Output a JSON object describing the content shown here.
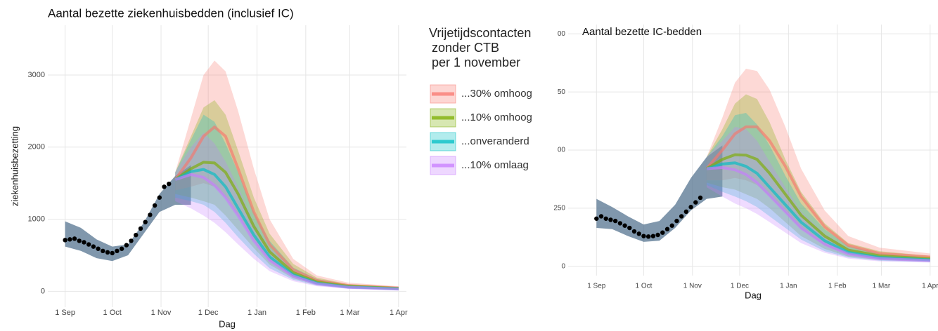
{
  "chart_data": [
    {
      "type": "line",
      "title": "Aantal bezette ziekenhuisbedden (inclusief IC)",
      "x_label": "Dag",
      "y_label": "ziekenhuisbezetting",
      "legend_title": [
        "Vrijetijdscontacten",
        "zonder CTB",
        "per 1 november"
      ],
      "xlim": [
        -11,
        217
      ],
      "ylim": [
        -220,
        3690
      ],
      "xticks": [
        {
          "value": 0,
          "label": "1 Sep"
        },
        {
          "value": 30,
          "label": "1 Oct"
        },
        {
          "value": 61,
          "label": "1 Nov"
        },
        {
          "value": 91,
          "label": "1 Dec"
        },
        {
          "value": 122,
          "label": "1 Jan"
        },
        {
          "value": 153,
          "label": "1 Feb"
        },
        {
          "value": 181,
          "label": "1 Mar"
        },
        {
          "value": 212,
          "label": "1 Apr"
        }
      ],
      "yticks": [
        0,
        1000,
        2000,
        3000
      ],
      "grid": true,
      "x": [
        70,
        80,
        88,
        95,
        102,
        110,
        120,
        130,
        145,
        160,
        180,
        212
      ],
      "series": [
        {
          "name": "...30% omhoog",
          "color": "#f8766d",
          "values": [
            1550,
            1850,
            2150,
            2280,
            2150,
            1700,
            1100,
            650,
            300,
            150,
            80,
            45
          ],
          "upper": [
            1650,
            2400,
            3000,
            3200,
            3050,
            2500,
            1700,
            1000,
            450,
            220,
            120,
            70
          ],
          "lower": [
            1400,
            1450,
            1500,
            1450,
            1300,
            1050,
            700,
            420,
            200,
            100,
            50,
            25
          ]
        },
        {
          "name": "...10% omhoog",
          "color": "#7cae00",
          "values": [
            1550,
            1700,
            1790,
            1780,
            1650,
            1350,
            900,
            550,
            260,
            130,
            70,
            40
          ],
          "upper": [
            1650,
            2150,
            2550,
            2650,
            2450,
            1950,
            1300,
            800,
            380,
            190,
            100,
            60
          ],
          "lower": [
            1350,
            1300,
            1250,
            1200,
            1050,
            850,
            600,
            370,
            180,
            90,
            45,
            22
          ]
        },
        {
          "name": "...onveranderd",
          "color": "#00bfc4",
          "values": [
            1550,
            1660,
            1690,
            1620,
            1450,
            1150,
            780,
            480,
            230,
            115,
            60,
            35
          ],
          "upper": [
            1650,
            2100,
            2450,
            2350,
            2050,
            1650,
            1100,
            700,
            330,
            170,
            90,
            55
          ],
          "lower": [
            1300,
            1250,
            1200,
            1100,
            950,
            750,
            520,
            320,
            160,
            80,
            40,
            20
          ]
        },
        {
          "name": "...10% omlaag",
          "color": "#c77cff",
          "values": [
            1550,
            1620,
            1580,
            1470,
            1300,
            1050,
            700,
            430,
            210,
            105,
            55,
            30
          ],
          "upper": [
            1650,
            2000,
            2200,
            2050,
            1800,
            1450,
            950,
            600,
            300,
            150,
            80,
            50
          ],
          "lower": [
            1250,
            1150,
            1050,
            950,
            820,
            650,
            450,
            280,
            140,
            70,
            35,
            18
          ]
        }
      ],
      "base": {
        "color": "#4f6f8c",
        "x": [
          0,
          10,
          20,
          30,
          40,
          50,
          60,
          70,
          80
        ],
        "lower": [
          620,
          560,
          460,
          420,
          500,
          800,
          1100,
          1200,
          1200
        ],
        "upper": [
          970,
          880,
          720,
          620,
          650,
          950,
          1350,
          1600,
          1750
        ]
      },
      "observed": {
        "color": "#000000",
        "x": [
          0,
          3,
          6,
          9,
          12,
          15,
          18,
          21,
          24,
          27,
          30,
          33,
          36,
          39,
          42,
          45,
          48,
          51,
          54,
          57,
          60,
          63,
          66
        ],
        "values": [
          710,
          720,
          730,
          700,
          680,
          650,
          620,
          590,
          560,
          540,
          530,
          560,
          590,
          640,
          700,
          780,
          870,
          960,
          1060,
          1190,
          1300,
          1450,
          1490
        ]
      }
    },
    {
      "type": "line",
      "title": "Aantal bezette IC-bedden",
      "x_label": "Dag",
      "xlim": [
        -18,
        217
      ],
      "ylim": [
        -40,
        1040
      ],
      "xticks": [
        {
          "value": 0,
          "label": "1 Sep"
        },
        {
          "value": 30,
          "label": "1 Oct"
        },
        {
          "value": 61,
          "label": "1 Nov"
        },
        {
          "value": 91,
          "label": "1 Dec"
        },
        {
          "value": 122,
          "label": "1 Jan"
        },
        {
          "value": 153,
          "label": "1 Feb"
        },
        {
          "value": 181,
          "label": "1 Mar"
        },
        {
          "value": 212,
          "label": "1 Apr"
        }
      ],
      "yticks": [
        0,
        250,
        {
          "value": 500,
          "label": "00"
        },
        {
          "value": 750,
          "label": "50"
        },
        {
          "value": 1000,
          "label": "00"
        }
      ],
      "grid": true,
      "x": [
        70,
        80,
        88,
        95,
        102,
        110,
        120,
        130,
        145,
        160,
        180,
        212
      ],
      "series": [
        {
          "color": "#f8766d",
          "values": [
            420,
            500,
            570,
            600,
            600,
            540,
            430,
            300,
            170,
            90,
            55,
            40
          ],
          "upper": [
            470,
            640,
            790,
            850,
            840,
            760,
            600,
            420,
            240,
            130,
            80,
            55
          ],
          "lower": [
            370,
            370,
            380,
            370,
            350,
            300,
            230,
            160,
            90,
            50,
            30,
            22
          ]
        },
        {
          "color": "#7cae00",
          "values": [
            420,
            460,
            480,
            478,
            460,
            400,
            310,
            220,
            130,
            70,
            45,
            32
          ],
          "upper": [
            470,
            590,
            700,
            740,
            720,
            620,
            460,
            320,
            185,
            100,
            65,
            45
          ],
          "lower": [
            360,
            340,
            330,
            310,
            290,
            250,
            190,
            130,
            75,
            42,
            27,
            20
          ]
        },
        {
          "color": "#00bfc4",
          "values": [
            420,
            440,
            445,
            430,
            400,
            340,
            265,
            190,
            110,
            60,
            38,
            28
          ],
          "upper": [
            470,
            560,
            650,
            660,
            610,
            520,
            390,
            270,
            160,
            88,
            55,
            40
          ],
          "lower": [
            350,
            320,
            300,
            280,
            255,
            215,
            165,
            115,
            65,
            38,
            24,
            18
          ]
        },
        {
          "color": "#c77cff",
          "values": [
            420,
            425,
            415,
            395,
            360,
            305,
            235,
            165,
            95,
            53,
            33,
            25
          ],
          "upper": [
            470,
            540,
            600,
            590,
            540,
            450,
            340,
            235,
            140,
            78,
            48,
            35
          ],
          "lower": [
            340,
            300,
            270,
            250,
            225,
            190,
            145,
            100,
            58,
            33,
            21,
            16
          ]
        }
      ],
      "base": {
        "color": "#4f6f8c",
        "x": [
          0,
          10,
          20,
          30,
          40,
          50,
          60,
          70,
          80
        ],
        "lower": [
          165,
          160,
          130,
          105,
          110,
          165,
          240,
          290,
          300
        ],
        "upper": [
          290,
          255,
          215,
          180,
          195,
          265,
          380,
          470,
          520
        ]
      },
      "observed": {
        "color": "#000000",
        "x": [
          0,
          3,
          6,
          9,
          12,
          15,
          18,
          21,
          24,
          27,
          30,
          33,
          36,
          39,
          42,
          45,
          48,
          51,
          54,
          57,
          60,
          63,
          66
        ],
        "values": [
          205,
          215,
          205,
          200,
          195,
          185,
          175,
          165,
          150,
          140,
          130,
          128,
          130,
          135,
          145,
          160,
          175,
          195,
          215,
          235,
          255,
          275,
          295
        ]
      }
    }
  ]
}
